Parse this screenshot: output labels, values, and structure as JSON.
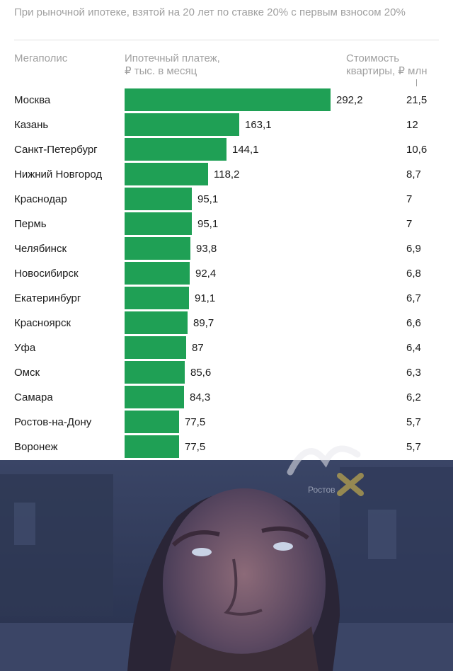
{
  "subtitle": "При рыночной ипотеке, взятой на 20 лет по ставке 20% с первым взносом 20%",
  "headers": {
    "city": "Мегаполис",
    "payment_line1": "Ипотечный платеж,",
    "payment_line2": "₽ тыс. в месяц",
    "price_line1": "Стоимость",
    "price_line2": "квартиры, ₽ млн"
  },
  "colors": {
    "bar": "#1fa055",
    "muted_text": "#a0a0a0",
    "text": "#1a1a1a"
  },
  "chart_data": {
    "type": "bar",
    "orientation": "horizontal",
    "categories": [
      "Москва",
      "Казань",
      "Санкт-Петербург",
      "Нижний Новгород",
      "Краснодар",
      "Пермь",
      "Челябинск",
      "Новосибирск",
      "Екатеринбург",
      "Красноярск",
      "Уфа",
      "Омск",
      "Самара",
      "Ростов-на-Дону",
      "Воронеж"
    ],
    "series": [
      {
        "values": [
          292.2,
          163.1,
          144.1,
          118.2,
          95.1,
          95.1,
          93.8,
          92.4,
          91.1,
          89.7,
          87,
          85.6,
          84.3,
          77.5,
          77.5
        ]
      }
    ],
    "value_labels": [
      "292,2",
      "163,1",
      "144,1",
      "118,2",
      "95,1",
      "95,1",
      "93,8",
      "92,4",
      "91,1",
      "89,7",
      "87",
      "85,6",
      "84,3",
      "77,5",
      "77,5"
    ],
    "price_labels": [
      "21,5",
      "12",
      "10,6",
      "8,7",
      "7",
      "7",
      "6,9",
      "6,8",
      "6,7",
      "6,6",
      "6,4",
      "6,3",
      "6,2",
      "5,7",
      "5,7"
    ],
    "xlim": [
      0,
      292.2
    ],
    "grid": false,
    "legend": "none"
  },
  "photo": {
    "description_icon": "meme-man-looking-up-image"
  },
  "watermark": {
    "text": "Ростов",
    "icon": "kids-rostov-logo"
  }
}
